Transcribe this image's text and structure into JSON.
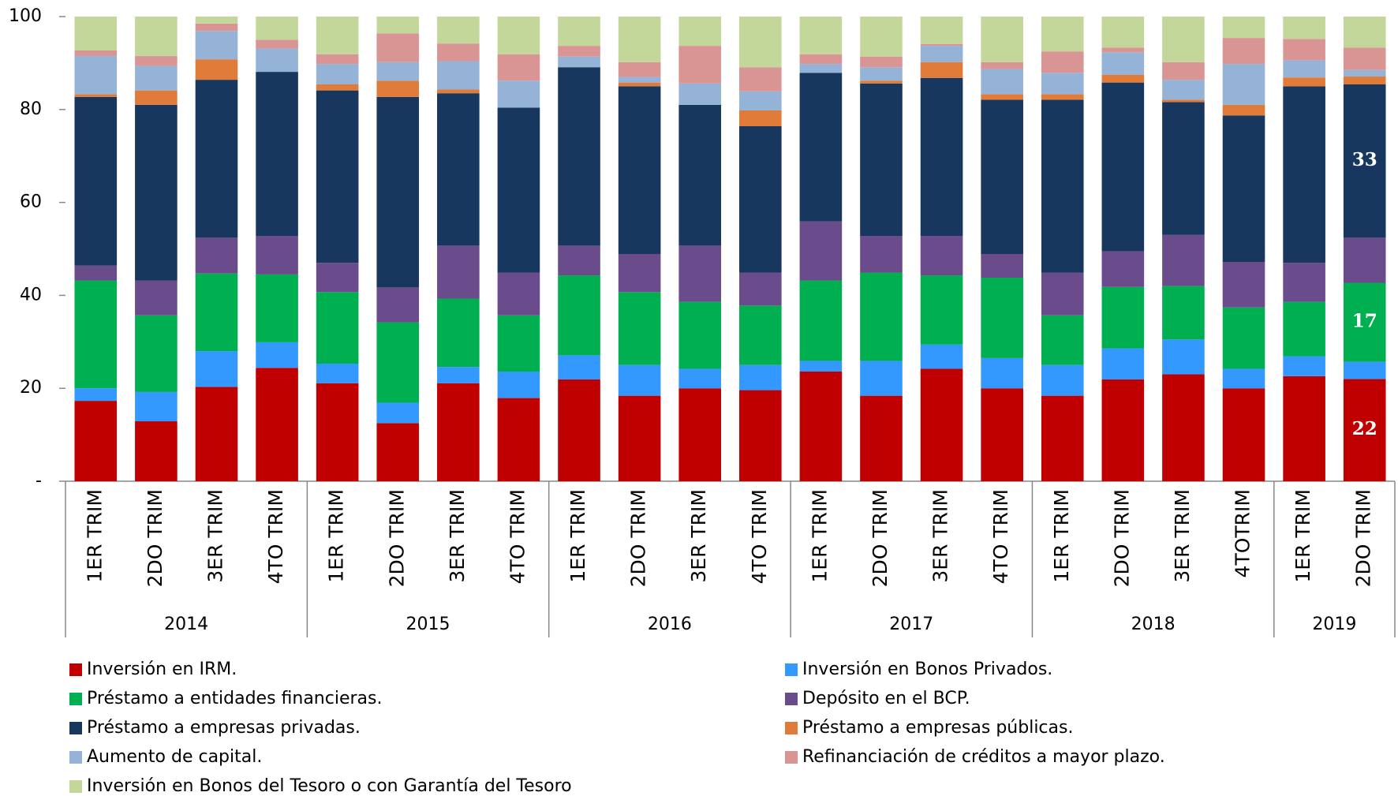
{
  "chart_data": {
    "type": "stacked_bar",
    "groups": [
      {
        "name": "2014",
        "categories": [
          "1ER TRIM",
          "2DO TRIM",
          "3ER TRIM",
          "4TO TRIM"
        ]
      },
      {
        "name": "2015",
        "categories": [
          "1ER TRIM",
          "2DO TRIM",
          "3ER TRIM",
          "4TO TRIM"
        ]
      },
      {
        "name": "2016",
        "categories": [
          "1ER TRIM",
          "2DO TRIM",
          "3ER TRIM",
          "4TO TRIM"
        ]
      },
      {
        "name": "2017",
        "categories": [
          "1ER TRIM",
          "2DO TRIM",
          "3ER TRIM",
          "4TO TRIM"
        ]
      },
      {
        "name": "2018",
        "categories": [
          "1ER TRIM",
          "2DO TRIM",
          "3ER TRIM",
          "4TOTRIM"
        ]
      },
      {
        "name": "2019",
        "categories": [
          "1ER TRIM",
          "2DO TRIM"
        ]
      }
    ],
    "series": [
      {
        "name": "Inversión en IRM.",
        "color": "#c00000",
        "data_labels": true,
        "values": [
          17.3,
          12.9,
          20.3,
          24.4,
          21.1,
          12.5,
          21.1,
          17.9,
          21.9,
          18.4,
          20,
          19.6,
          23.6,
          18.4,
          24.2,
          20,
          18.4,
          21.9,
          23,
          20,
          22.6,
          22
        ]
      },
      {
        "name": "Inversión en Bonos Privados.",
        "color": "#3399ff",
        "values": [
          2.7,
          6.3,
          7.7,
          5.5,
          4.2,
          4.4,
          3.5,
          5.7,
          5.2,
          6.6,
          4.2,
          5.4,
          2.3,
          7.5,
          5.2,
          6.5,
          6.6,
          6.7,
          7.5,
          4.2,
          4.3,
          3.7
        ]
      },
      {
        "name": "Préstamo a entidades financieras.",
        "color": "#00b050",
        "data_labels": true,
        "values": [
          23.2,
          16.5,
          16.7,
          14.6,
          15.4,
          17.3,
          14.7,
          12.1,
          17.2,
          15.7,
          14.4,
          12.8,
          17.3,
          19,
          14.9,
          17.3,
          10.7,
          13.2,
          11.5,
          13.2,
          11.7,
          17
        ]
      },
      {
        "name": "Depósito en el BCP.",
        "color": "#6a4c8c",
        "values": [
          3.2,
          7.5,
          7.7,
          8.3,
          6.3,
          7.5,
          11.4,
          9.2,
          6.4,
          8.2,
          12.1,
          7.1,
          12.7,
          7.9,
          8.5,
          5.1,
          9.2,
          7.7,
          11,
          9.8,
          8.4,
          9.7
        ]
      },
      {
        "name": "Préstamo a empresas privadas.",
        "color": "#17375e",
        "data_labels": true,
        "values": [
          36.3,
          37.8,
          34,
          35.3,
          37.1,
          41,
          32.8,
          35.5,
          38.4,
          36.1,
          30.3,
          31.5,
          32,
          32.8,
          34,
          33.2,
          37.2,
          36.3,
          28.6,
          31.5,
          38,
          33
        ]
      },
      {
        "name": "Préstamo a empresas públicas.",
        "color": "#e07b39",
        "values": [
          0.6,
          3.1,
          4.4,
          0,
          1.3,
          3.5,
          0.8,
          0,
          0,
          0.8,
          0,
          3.4,
          0,
          0.6,
          3.4,
          1.2,
          1.2,
          1.7,
          0.5,
          2.3,
          1.9,
          1.7
        ]
      },
      {
        "name": "Aumento de capital.",
        "color": "#95b3d7",
        "values": [
          8.2,
          5.3,
          6.1,
          5,
          4.4,
          4,
          6.1,
          5.8,
          2.3,
          1.2,
          4.6,
          4.1,
          1.9,
          2.9,
          3.5,
          5.4,
          4.6,
          4.8,
          4.3,
          8.8,
          3.7,
          1.4
        ]
      },
      {
        "name": "Refinanciación de créditos a mayor plazo.",
        "color": "#d99594",
        "values": [
          1.2,
          2.1,
          1.6,
          1.9,
          2.1,
          6.2,
          3.8,
          5.7,
          2.3,
          3.2,
          8.1,
          5.2,
          2.1,
          2.3,
          0.4,
          1.5,
          4.6,
          1,
          3.8,
          5.6,
          4.6,
          4.8
        ]
      },
      {
        "name": "Inversión en Bonos del Tesoro o con Garantía del Tesoro",
        "color": "#c4d79b",
        "values": [
          7.3,
          8.5,
          1.5,
          5,
          8.1,
          3.6,
          5.8,
          8.1,
          6.3,
          9.8,
          6.3,
          10.9,
          8.1,
          8.6,
          5.9,
          9.8,
          7.5,
          6.7,
          9.8,
          4.6,
          4.8,
          6.7
        ]
      }
    ],
    "ylim": [
      0,
      100
    ],
    "yticks": [
      {
        "value": 0,
        "label": "-"
      },
      20,
      40,
      60,
      80,
      100
    ],
    "grid": false
  }
}
